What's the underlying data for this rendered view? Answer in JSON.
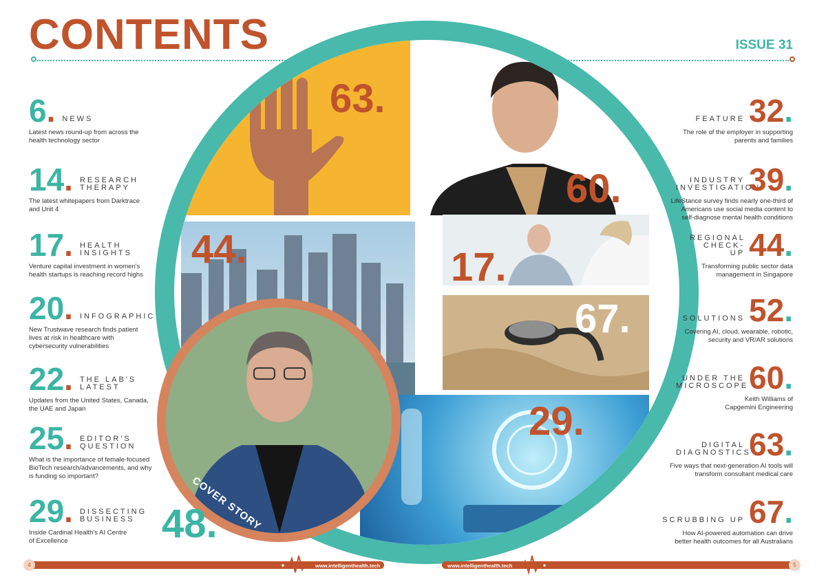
{
  "header": {
    "title": "CONTENTS",
    "issue": "ISSUE 31"
  },
  "left_entries": [
    {
      "num": "6",
      "label": "NEWS",
      "desc": "Latest news round-up from across the health technology sector",
      "color": "teal"
    },
    {
      "num": "14",
      "label": "RESEARCH THERAPY",
      "desc": "The latest whitepapers from Darktrace and Unit 4",
      "color": "teal"
    },
    {
      "num": "17",
      "label": "HEALTH INSIGHTS",
      "desc": "Venture capital investment in women's health startups is reaching record highs",
      "color": "teal"
    },
    {
      "num": "20",
      "label": "INFOGRAPHIC",
      "desc": "New Trustwave research finds patient lives at risk in healthcare with cybersecurity vulnerabilities",
      "color": "teal"
    },
    {
      "num": "22",
      "label": "THE LAB'S LATEST",
      "desc": "Updates from the United States, Canada, the UAE and Japan",
      "color": "teal"
    },
    {
      "num": "25",
      "label": "EDITOR'S QUESTION",
      "desc": "What is the importance of female-focused BioTech research/advancements, and why is funding so important?",
      "color": "teal"
    },
    {
      "num": "29",
      "label": "DISSECTING BUSINESS",
      "desc": "Inside Cardinal Health's AI Centre of Excellence",
      "color": "teal"
    }
  ],
  "right_entries": [
    {
      "num": "32",
      "label": "FEATURE",
      "desc": "The role of the employer in supporting parents and families"
    },
    {
      "num": "39",
      "label": "INDUSTRY INVESTIGATION",
      "desc": "LifeStance survey finds nearly one-third of Americans use social media content to self-diagnose mental health conditions"
    },
    {
      "num": "44",
      "label": "REGIONAL CHECK-UP",
      "desc": "Transforming public sector data management in Singapore"
    },
    {
      "num": "52",
      "label": "SOLUTIONS",
      "desc": "Covering AI, cloud, wearable, robotic, security and VR/AR solutions"
    },
    {
      "num": "60",
      "label": "UNDER THE MICROSCOPE",
      "desc": "Keith Williams of Capgemini Engineering"
    },
    {
      "num": "63",
      "label": "DIGITAL DIAGNOSTICS",
      "desc": "Five ways that next-generation AI tools will transform consultant medical care"
    },
    {
      "num": "67",
      "label": "SCRUBBING UP",
      "desc": "How AI-powered automation can drive better health outcomes for all Australians"
    }
  ],
  "photo_tiles": {
    "hand": "63.",
    "portrait": "60.",
    "city": "44.",
    "consult": "17.",
    "stethoscope": "67.",
    "ai": "29.",
    "cover_number": "48.",
    "cover_tag": "COVER STORY"
  },
  "footer": {
    "page_left": "4",
    "page_right": "5",
    "url": "www.intelligenthealth.tech"
  },
  "colors": {
    "rust": "#c0532c",
    "teal": "#3bb5a5"
  }
}
